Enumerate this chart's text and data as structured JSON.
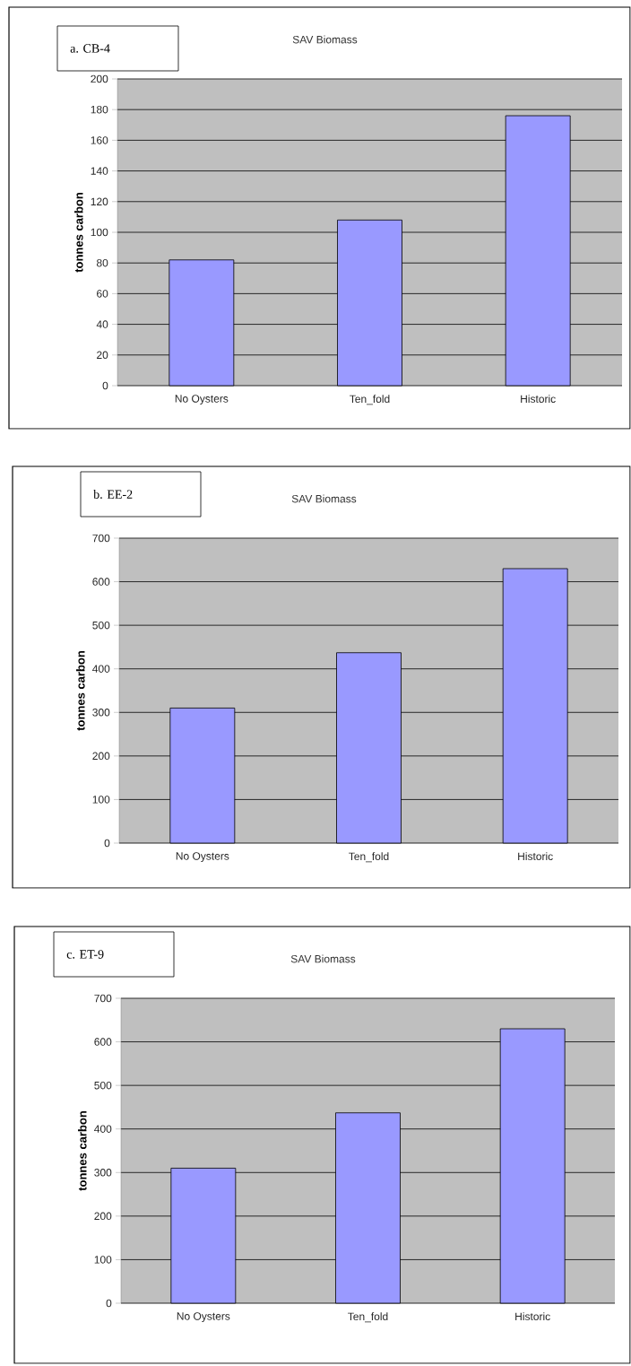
{
  "chart_data": [
    {
      "type": "bar",
      "title": "SAV Biomass",
      "subtitle": "a. CB-4",
      "ylabel": "tonnes carbon",
      "categories": [
        "No Oysters",
        "Ten_fold",
        "Historic"
      ],
      "values": [
        82,
        108,
        176
      ],
      "color": "#9999ff",
      "ylim": [
        0,
        200
      ],
      "yticks": [
        0,
        20,
        40,
        60,
        80,
        100,
        120,
        140,
        160,
        180,
        200
      ],
      "grid": "y"
    },
    {
      "type": "bar",
      "title": "SAV Biomass",
      "subtitle": "b. EE-2",
      "ylabel": "tonnes carbon",
      "categories": [
        "No Oysters",
        "Ten_fold",
        "Historic"
      ],
      "values": [
        310,
        437,
        630
      ],
      "color": "#9999ff",
      "ylim": [
        0,
        700
      ],
      "yticks": [
        0,
        100,
        200,
        300,
        400,
        500,
        600,
        700
      ],
      "grid": "y"
    },
    {
      "type": "bar",
      "title": "SAV Biomass",
      "subtitle": "c. ET-9",
      "ylabel": "tonnes carbon",
      "categories": [
        "No Oysters",
        "Ten_fold",
        "Historic"
      ],
      "values": [
        310,
        437,
        630
      ],
      "color": "#9999ff",
      "ylim": [
        0,
        700
      ],
      "yticks": [
        0,
        100,
        200,
        300,
        400,
        500,
        600,
        700
      ],
      "grid": "y"
    }
  ]
}
